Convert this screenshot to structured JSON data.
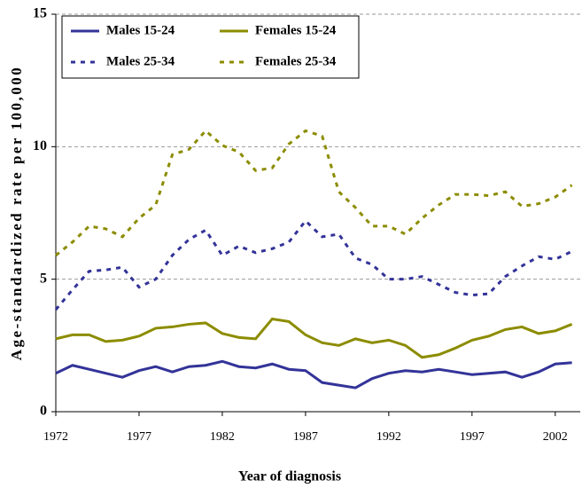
{
  "chart_data": {
    "type": "line",
    "xlabel": "Year of diagnosis",
    "ylabel": "Age-standardized rate per 100,000",
    "x": [
      1972,
      1973,
      1974,
      1975,
      1976,
      1977,
      1978,
      1979,
      1980,
      1981,
      1982,
      1983,
      1984,
      1985,
      1986,
      1987,
      1988,
      1989,
      1990,
      1991,
      1992,
      1993,
      1994,
      1995,
      1996,
      1997,
      1998,
      1999,
      2000,
      2001,
      2002,
      2003
    ],
    "series": [
      {
        "name": "Males 15-24",
        "color": "#333399",
        "style": "solid",
        "values": [
          1.45,
          1.75,
          1.6,
          1.45,
          1.3,
          1.55,
          1.7,
          1.5,
          1.7,
          1.75,
          1.9,
          1.7,
          1.65,
          1.8,
          1.6,
          1.55,
          1.1,
          1.0,
          0.9,
          1.25,
          1.45,
          1.55,
          1.5,
          1.6,
          1.5,
          1.4,
          1.45,
          1.5,
          1.3,
          1.5,
          1.8,
          1.85
        ]
      },
      {
        "name": "Females 15-24",
        "color": "#8c8c00",
        "style": "solid",
        "values": [
          2.75,
          2.9,
          2.9,
          2.65,
          2.7,
          2.85,
          3.15,
          3.2,
          3.3,
          3.35,
          2.95,
          2.8,
          2.75,
          3.5,
          3.4,
          2.9,
          2.6,
          2.5,
          2.75,
          2.6,
          2.7,
          2.5,
          2.05,
          2.15,
          2.4,
          2.7,
          2.85,
          3.1,
          3.2,
          2.95,
          3.05,
          3.3
        ]
      },
      {
        "name": "Males 25-34",
        "color": "#333399",
        "style": "dotted",
        "values": [
          3.85,
          4.6,
          5.3,
          5.35,
          5.45,
          4.7,
          5.0,
          5.9,
          6.5,
          6.85,
          5.9,
          6.25,
          6.0,
          6.15,
          6.4,
          7.2,
          6.6,
          6.7,
          5.8,
          5.55,
          5.0,
          5.0,
          5.1,
          4.8,
          4.5,
          4.4,
          4.45,
          5.1,
          5.5,
          5.85,
          5.75,
          6.05
        ]
      },
      {
        "name": "Females 25-34",
        "color": "#8c8c00",
        "style": "dotted",
        "values": [
          5.9,
          6.4,
          7.0,
          6.9,
          6.6,
          7.3,
          7.8,
          9.7,
          9.9,
          10.6,
          10.05,
          9.8,
          9.1,
          9.2,
          10.1,
          10.6,
          10.4,
          8.3,
          7.7,
          7.0,
          7.0,
          6.7,
          7.3,
          7.8,
          8.2,
          8.2,
          8.15,
          8.3,
          7.75,
          7.85,
          8.1,
          8.55
        ]
      }
    ],
    "xlim": [
      1972,
      2003.5
    ],
    "xticks": [
      1972,
      1977,
      1982,
      1987,
      1992,
      1997,
      2002
    ],
    "ylim": [
      0,
      15
    ],
    "yticks": [
      0,
      5,
      10,
      15
    ],
    "grid": true,
    "legend": "top-left"
  }
}
